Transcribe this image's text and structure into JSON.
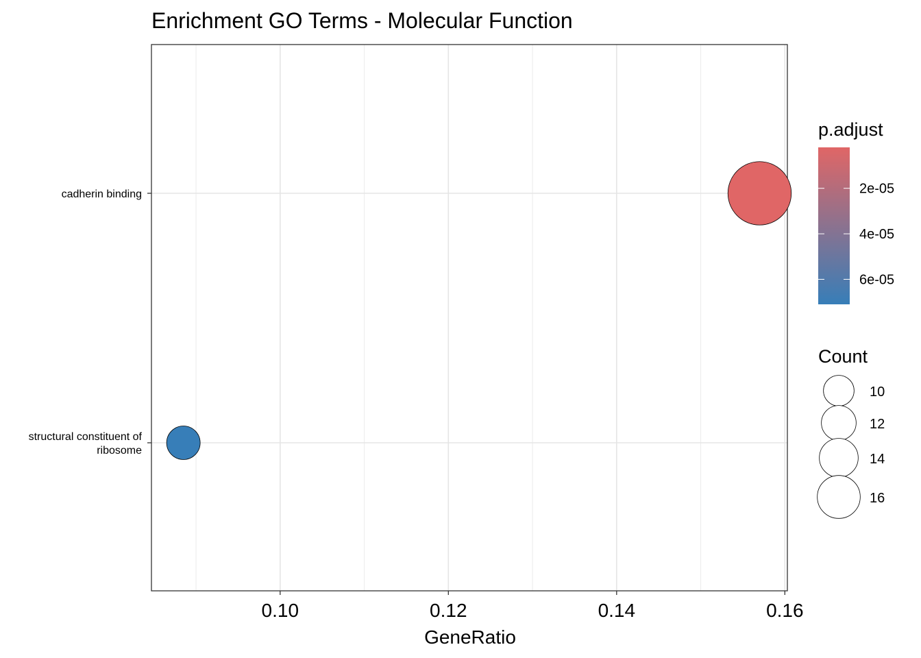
{
  "chart_data": {
    "type": "scatter",
    "title": "Enrichment GO Terms - Molecular Function",
    "xlabel": "GeneRatio",
    "ylabel": "",
    "xlim": [
      0.0847,
      0.1603
    ],
    "xticks": [
      0.1,
      0.12,
      0.14,
      0.16
    ],
    "xtick_labels": [
      "0.10",
      "0.12",
      "0.14",
      "0.16"
    ],
    "categories": [
      "cadherin binding",
      "structural constituent of ribosome"
    ],
    "category_labels": [
      [
        "cadherin binding"
      ],
      [
        "structural constituent of",
        "ribosome"
      ]
    ],
    "points": [
      {
        "term": "cadherin binding",
        "gene_ratio": 0.157,
        "count": 17,
        "p_adjust": 2e-06
      },
      {
        "term": "structural constituent of ribosome",
        "gene_ratio": 0.0885,
        "count": 9,
        "p_adjust": 7.1e-05
      }
    ],
    "grid": true,
    "legend_placement": "right",
    "color_legend": {
      "title": "p.adjust",
      "range": [
        2e-06,
        7.1e-05
      ],
      "low_color": "#e06666",
      "high_color": "#377eb8",
      "ticks": [
        2e-05,
        4e-05,
        6e-05
      ],
      "tick_labels": [
        "2e-05",
        "4e-05",
        "6e-05"
      ]
    },
    "size_legend": {
      "title": "Count",
      "values": [
        10,
        12,
        14,
        16
      ],
      "labels": [
        "10",
        "12",
        "14",
        "16"
      ]
    }
  }
}
